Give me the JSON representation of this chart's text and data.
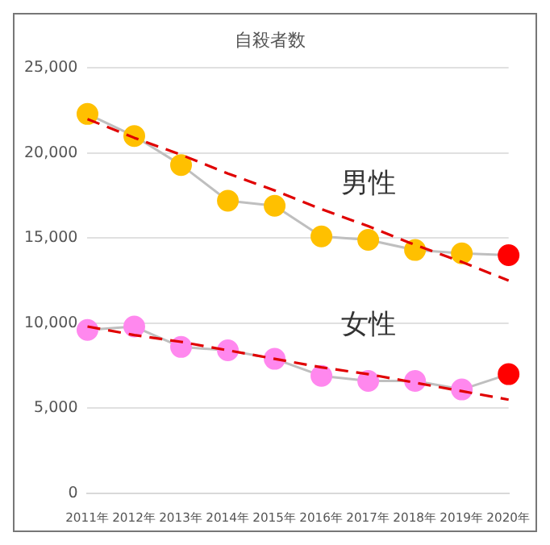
{
  "chart_data": {
    "type": "line",
    "title": "自殺者数",
    "categories": [
      "2011年",
      "2012年",
      "2013年",
      "2014年",
      "2015年",
      "2016年",
      "2017年",
      "2018年",
      "2019年",
      "2020年"
    ],
    "series": [
      {
        "type": "line",
        "name": "男性",
        "colors": [
          "#ffc000",
          "#ffc000",
          "#ffc000",
          "#ffc000",
          "#ffc000",
          "#ffc000",
          "#ffc000",
          "#ffc000",
          "#ffc000",
          "#ff0000"
        ],
        "values": [
          22300,
          21000,
          19300,
          17200,
          16900,
          15100,
          14900,
          14300,
          14100,
          14000
        ]
      },
      {
        "type": "line",
        "name": "女性",
        "colors": [
          "#ff88ee",
          "#ff88ee",
          "#ff88ee",
          "#ff88ee",
          "#ff88ee",
          "#ff88ee",
          "#ff88ee",
          "#ff88ee",
          "#ff88ee",
          "#ff0000"
        ],
        "values": [
          9600,
          9800,
          8600,
          8400,
          7900,
          6900,
          6600,
          6600,
          6100,
          7000
        ]
      },
      {
        "type": "line",
        "color": "#e00000",
        "line_style": "dashed",
        "marker": "none",
        "values": [
          22000,
          20900,
          19900,
          18800,
          17800,
          16700,
          15700,
          14600,
          13600,
          12500
        ]
      },
      {
        "type": "line",
        "color": "#e00000",
        "line_style": "dashed",
        "marker": "none",
        "values": [
          9800,
          9300,
          8900,
          8400,
          7900,
          7400,
          7000,
          6500,
          6000,
          5500
        ]
      }
    ],
    "ylim": [
      0,
      25000
    ],
    "yticks": [
      {
        "value": 0,
        "label": "0"
      },
      {
        "value": 5000,
        "label": "5,000"
      },
      {
        "value": 10000,
        "label": "10,000"
      },
      {
        "value": 15000,
        "label": "15,000"
      },
      {
        "value": 20000,
        "label": "20,000"
      },
      {
        "value": 25000,
        "label": "25,000"
      }
    ],
    "grid": "y",
    "legend": false,
    "marker": "circle"
  }
}
